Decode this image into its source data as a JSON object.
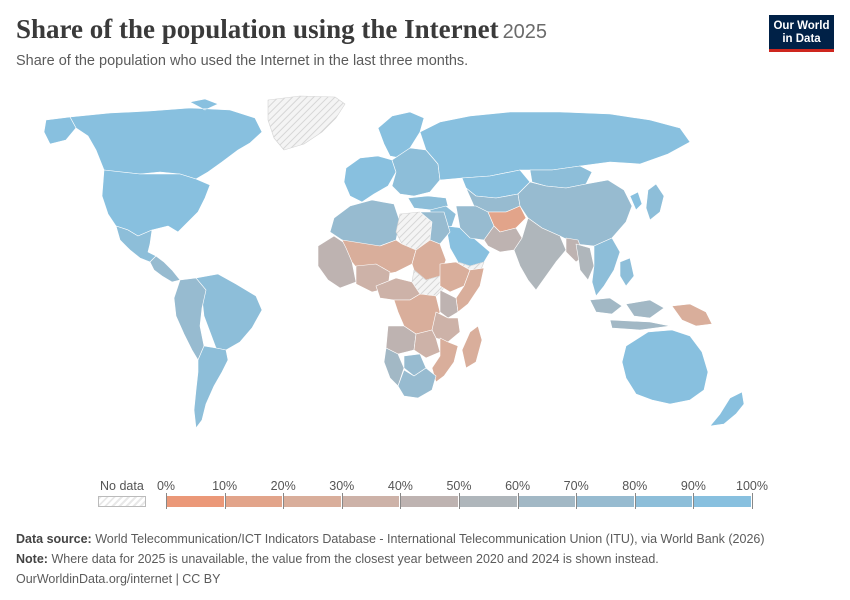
{
  "header": {
    "title": "Share of the population using the Internet",
    "year": "2025",
    "subtitle": "Share of the population who used the Internet in the last three months."
  },
  "logo": {
    "line1": "Our World",
    "line2": "in Data"
  },
  "legend": {
    "no_data_label": "No data",
    "ticks": [
      "0%",
      "10%",
      "20%",
      "30%",
      "40%",
      "50%",
      "60%",
      "70%",
      "80%",
      "90%",
      "100%"
    ],
    "colors": [
      "#eb9878",
      "#e2a48a",
      "#d9ae9b",
      "#cdb2a8",
      "#beb3b1",
      "#afb6bb",
      "#a2b8c5",
      "#97bbd0",
      "#8dbed9",
      "#88c0df"
    ],
    "no_data_color": "#eeeeee"
  },
  "map_data": {
    "metric": "share of population using the Internet (%)",
    "regions": [
      {
        "name": "Canada",
        "value": 94
      },
      {
        "name": "United States",
        "value": 93
      },
      {
        "name": "Mexico",
        "value": 81
      },
      {
        "name": "Central America",
        "value": 70
      },
      {
        "name": "Brazil",
        "value": 84
      },
      {
        "name": "Andean countries",
        "value": 75
      },
      {
        "name": "Southern Cone",
        "value": 88
      },
      {
        "name": "Greenland",
        "value": null
      },
      {
        "name": "Western Europe",
        "value": 92
      },
      {
        "name": "Scandinavia",
        "value": 97
      },
      {
        "name": "Eastern Europe",
        "value": 85
      },
      {
        "name": "Russia",
        "value": 90
      },
      {
        "name": "Kazakhstan",
        "value": 92
      },
      {
        "name": "Central Asia",
        "value": 78
      },
      {
        "name": "Mongolia",
        "value": 83
      },
      {
        "name": "China",
        "value": 78
      },
      {
        "name": "Korea",
        "value": 97
      },
      {
        "name": "Japan",
        "value": 87
      },
      {
        "name": "Turkey",
        "value": 86
      },
      {
        "name": "Middle East",
        "value": 80
      },
      {
        "name": "Arabian Peninsula",
        "value": 99
      },
      {
        "name": "Yemen",
        "value": null
      },
      {
        "name": "Iran",
        "value": 79
      },
      {
        "name": "Afghanistan",
        "value": 18
      },
      {
        "name": "Pakistan",
        "value": 45
      },
      {
        "name": "India",
        "value": 55
      },
      {
        "name": "Bangladesh",
        "value": 45
      },
      {
        "name": "Myanmar",
        "value": 58
      },
      {
        "name": "Southeast Asia",
        "value": 82
      },
      {
        "name": "Indonesia",
        "value": 69
      },
      {
        "name": "Papua New Guinea",
        "value": 27
      },
      {
        "name": "Australia",
        "value": 94
      },
      {
        "name": "New Zealand",
        "value": 95
      },
      {
        "name": "North Africa",
        "value": 78
      },
      {
        "name": "Libya",
        "value": null
      },
      {
        "name": "Egypt",
        "value": 72
      },
      {
        "name": "West Africa coast",
        "value": 40
      },
      {
        "name": "Sahel",
        "value": 25
      },
      {
        "name": "Nigeria",
        "value": 38
      },
      {
        "name": "Sudan",
        "value": 29
      },
      {
        "name": "South Sudan",
        "value": null
      },
      {
        "name": "Ethiopia",
        "value": 20
      },
      {
        "name": "Somalia",
        "value": 28
      },
      {
        "name": "Central Africa",
        "value": 30
      },
      {
        "name": "DR Congo",
        "value": 27
      },
      {
        "name": "Kenya",
        "value": 40
      },
      {
        "name": "Tanzania",
        "value": 32
      },
      {
        "name": "Angola",
        "value": 40
      },
      {
        "name": "Zambia",
        "value": 33
      },
      {
        "name": "Mozambique",
        "value": 22
      },
      {
        "name": "Madagascar",
        "value": 20
      },
      {
        "name": "Namibia",
        "value": 62
      },
      {
        "name": "Botswana",
        "value": 74
      },
      {
        "name": "South Africa",
        "value": 75
      }
    ]
  },
  "footer": {
    "source_label": "Data source:",
    "source_text": "World Telecommunication/ICT Indicators Database - International Telecommunication Union (ITU), via World Bank (2026)",
    "note_label": "Note:",
    "note_text": "Where data for 2025 is unavailable, the value from the closest year between 2020 and 2024 is shown instead.",
    "url": "OurWorldinData.org/internet | CC BY"
  }
}
